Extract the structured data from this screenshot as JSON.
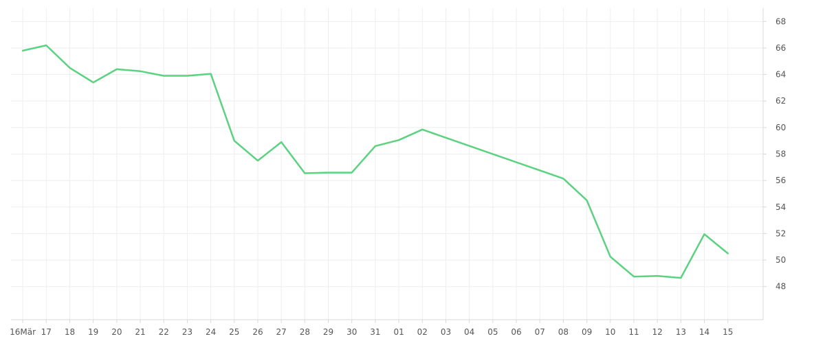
{
  "chart_data": {
    "type": "line",
    "title": "",
    "xlabel": "",
    "ylabel": "",
    "grid": true,
    "legend": "none",
    "x_tick_labels": [
      "16Mär",
      "17",
      "18",
      "19",
      "20",
      "21",
      "22",
      "23",
      "24",
      "25",
      "26",
      "27",
      "28",
      "29",
      "30",
      "31",
      "01",
      "02",
      "03",
      "04",
      "05",
      "06",
      "07",
      "08",
      "09",
      "10",
      "11",
      "12",
      "13",
      "14",
      "15"
    ],
    "y_ticks": [
      48,
      50,
      52,
      54,
      56,
      58,
      60,
      62,
      64,
      66,
      68
    ],
    "ylim": [
      45.5,
      69
    ],
    "xlim": [
      -0.5,
      31.5
    ],
    "series": [
      {
        "color": "#5ad27f",
        "points": [
          {
            "x": 0,
            "y": 65.8
          },
          {
            "x": 1,
            "y": 66.2
          },
          {
            "x": 2,
            "y": 64.5
          },
          {
            "x": 3,
            "y": 63.4
          },
          {
            "x": 4,
            "y": 64.4
          },
          {
            "x": 5,
            "y": 64.25
          },
          {
            "x": 6,
            "y": 63.9
          },
          {
            "x": 7,
            "y": 63.9
          },
          {
            "x": 8,
            "y": 64.05
          },
          {
            "x": 9,
            "y": 59.0
          },
          {
            "x": 10,
            "y": 57.5
          },
          {
            "x": 11,
            "y": 58.9
          },
          {
            "x": 12,
            "y": 56.55
          },
          {
            "x": 13,
            "y": 56.6
          },
          {
            "x": 14,
            "y": 56.6
          },
          {
            "x": 15,
            "y": 58.6
          },
          {
            "x": 16,
            "y": 59.05
          },
          {
            "x": 17,
            "y": 59.85
          },
          {
            "x": 23,
            "y": 56.15
          },
          {
            "x": 24,
            "y": 54.5
          },
          {
            "x": 25,
            "y": 50.25
          },
          {
            "x": 26,
            "y": 48.75
          },
          {
            "x": 27,
            "y": 48.8
          },
          {
            "x": 28,
            "y": 48.65
          },
          {
            "x": 29,
            "y": 51.95
          },
          {
            "x": 30,
            "y": 50.5
          }
        ]
      }
    ]
  }
}
